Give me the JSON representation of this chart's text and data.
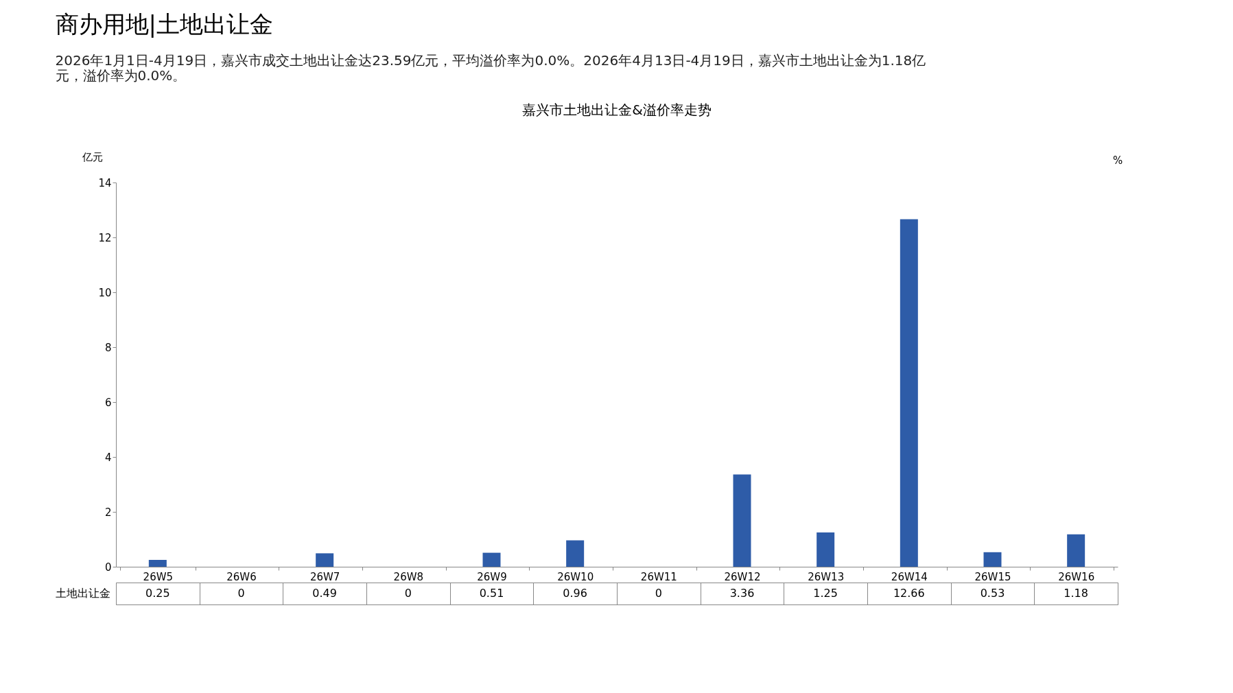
{
  "chart_data": {
    "type": "bar",
    "title": "商办用地|土地出让金",
    "subtitle": "2026年1月1日-4月19日，嘉兴市成交土地出让金达23.59亿元，平均溢价率为0.0%。2026年4月13日-4月19日，嘉兴市土地出让金为1.18亿元，溢价率为0.0%。",
    "annotations": [
      "嘉兴市土地出让金&溢价率走势"
    ],
    "ylabel": "亿元",
    "y2label": "%",
    "categories": [
      "26W5",
      "26W6",
      "26W7",
      "26W8",
      "26W9",
      "26W10",
      "26W11",
      "26W12",
      "26W13",
      "26W14",
      "26W15",
      "26W16"
    ],
    "series": [
      {
        "name": "土地出让金",
        "color": "#2e5ca8",
        "values": [
          0.25,
          0,
          0.49,
          0,
          0.51,
          0.96,
          0,
          3.36,
          1.25,
          12.66,
          0.53,
          1.18
        ]
      }
    ],
    "ylim": [
      0,
      14
    ],
    "yticks": [
      0,
      2,
      4,
      6,
      8,
      10,
      12,
      14
    ],
    "grid": false,
    "data_labels": true
  }
}
